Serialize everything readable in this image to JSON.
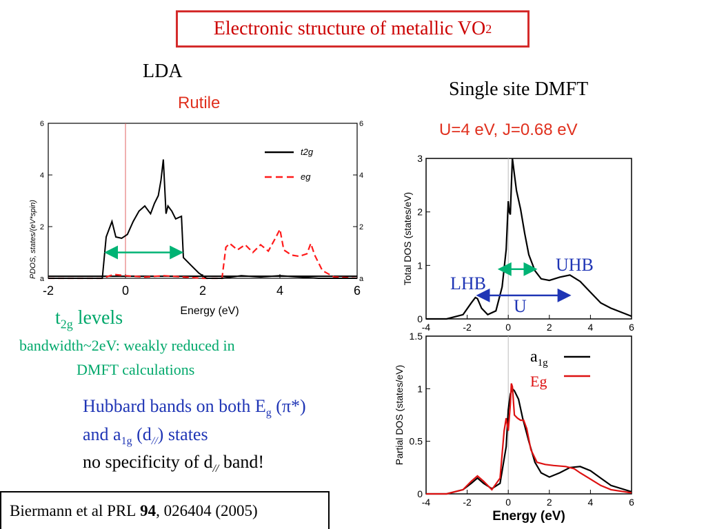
{
  "slide": {
    "title_main": "Electronic structure of metallic VO",
    "title_sub": "2",
    "lda_label": "LDA",
    "rutile_label": "Rutile",
    "dmft_label": "Single site DMFT",
    "params_label": "U=4 eV, J=0.68 eV",
    "t2g_t": "t",
    "t2g_sub": "2g",
    "t2g_rest": " levels",
    "bandwidth_line1": "bandwidth~2eV: weakly reduced in",
    "bandwidth_line2": "DMFT calculations",
    "hubbard_line1": "Hubbard bands on both E",
    "hubbard_line1_sub": "g",
    "hubbard_line1_end": " (π*)",
    "hubbard_line2_start": "and a",
    "hubbard_line2_sub": "1g",
    "hubbard_line2_mid": " (d",
    "hubbard_line2_sub2": "//",
    "hubbard_line2_end": ") states",
    "hubbard_line3_start": "no specificity of d",
    "hubbard_line3_sub": "//",
    "hubbard_line3_end": " band!",
    "ref_text": "Biermann et al PRL ",
    "ref_vol": "94",
    "ref_rest": ", 026404 (2005)",
    "uhb": "UHB",
    "lhb": "LHB",
    "u": "U",
    "legend_a1g_a": "a",
    "legend_a1g_sub": "1g",
    "legend_eg": "Eg"
  },
  "colors": {
    "title_border": "#d42b2b",
    "t2g_line": "#000000",
    "eg_line": "#ff1a1a",
    "green_arrow": "#00b374",
    "blue_arrow": "#1f35b5",
    "a1g_line": "#000000",
    "Eg_line": "#dd1111"
  },
  "chart_data": [
    {
      "type": "line",
      "xlabel": "Energy (eV)",
      "ylabel": "PDOS, states/(eV*spin)",
      "xlim": [
        -2,
        6
      ],
      "ylim": [
        0,
        6
      ],
      "x_ticks": [
        "-2",
        "0",
        "2",
        "4",
        "6"
      ],
      "y_ticks_left": [
        "a",
        "2",
        "4",
        "6"
      ],
      "y_ticks_right": [
        "a",
        "2",
        "4",
        "6"
      ],
      "legend": [
        "t2g",
        "eg"
      ],
      "legend_position": "top-right",
      "series": [
        {
          "name": "t2g",
          "x": [
            -2,
            -0.6,
            -0.5,
            -0.35,
            -0.25,
            -0.1,
            0.05,
            0.2,
            0.35,
            0.5,
            0.65,
            0.75,
            0.85,
            0.92,
            0.98,
            1.05,
            1.1,
            1.2,
            1.3,
            1.45,
            1.5,
            1.7,
            1.9,
            2.1,
            2.5,
            3.0,
            3.5,
            4.0,
            4.5,
            5.0,
            6
          ],
          "values": [
            0,
            0,
            1.6,
            2.2,
            1.6,
            1.55,
            1.7,
            2.2,
            2.6,
            2.8,
            2.5,
            2.9,
            3.2,
            3.8,
            4.6,
            2.5,
            2.8,
            2.6,
            2.3,
            2.4,
            0.8,
            0.5,
            0.2,
            0.0,
            0.0,
            0.1,
            0.05,
            0.1,
            0.05,
            0.0,
            0
          ]
        },
        {
          "name": "eg",
          "x": [
            -2,
            -0.6,
            -0.3,
            0,
            0.5,
            1.0,
            1.5,
            2.0,
            2.5,
            2.6,
            2.7,
            2.9,
            3.1,
            3.3,
            3.5,
            3.7,
            3.9,
            4.0,
            4.1,
            4.3,
            4.5,
            4.7,
            4.8,
            4.9,
            5.1,
            5.4,
            6
          ],
          "values": [
            0,
            0,
            0.15,
            0.1,
            0.05,
            0.1,
            0.05,
            0.0,
            0.0,
            1.2,
            1.35,
            1.1,
            1.3,
            1.0,
            1.3,
            1.05,
            1.6,
            1.9,
            1.1,
            0.9,
            0.85,
            0.95,
            1.35,
            0.9,
            0.3,
            0.05,
            0
          ]
        }
      ]
    },
    {
      "type": "line",
      "xlabel": "",
      "ylabel": "Total DOS (states/eV)",
      "xlim": [
        -4,
        6
      ],
      "ylim": [
        0,
        3
      ],
      "x_ticks": [
        "-4",
        "-2",
        "0",
        "2",
        "4",
        "6"
      ],
      "y_ticks": [
        "0",
        "1",
        "2",
        "3"
      ],
      "series": [
        {
          "name": "total",
          "x": [
            -4,
            -3,
            -2.2,
            -1.8,
            -1.6,
            -1.5,
            -1.3,
            -1.0,
            -0.6,
            -0.3,
            -0.1,
            0.0,
            0.05,
            0.1,
            0.15,
            0.2,
            0.3,
            0.4,
            0.6,
            0.8,
            1.0,
            1.3,
            1.6,
            2.0,
            2.5,
            3.0,
            3.5,
            4.0,
            4.5,
            5.0,
            6.0
          ],
          "values": [
            0.0,
            0.0,
            0.08,
            0.3,
            0.4,
            0.38,
            0.2,
            0.08,
            0.15,
            0.6,
            1.3,
            2.2,
            2.0,
            1.95,
            2.5,
            3.0,
            2.7,
            2.4,
            2.05,
            1.6,
            1.2,
            0.9,
            0.75,
            0.72,
            0.78,
            0.82,
            0.7,
            0.5,
            0.3,
            0.2,
            0.05
          ]
        }
      ],
      "annotations": [
        "UHB",
        "LHB",
        "U"
      ]
    },
    {
      "type": "line",
      "xlabel": "Energy (eV)",
      "ylabel": "Partial DOS (states/eV)",
      "xlim": [
        -4,
        6
      ],
      "ylim": [
        0,
        1.5
      ],
      "x_ticks": [
        "-4",
        "-2",
        "0",
        "2",
        "4",
        "6"
      ],
      "y_ticks": [
        "0",
        "0.5",
        "1",
        "1.5"
      ],
      "legend": [
        "a1g",
        "Eg"
      ],
      "legend_position": "top-right",
      "series": [
        {
          "name": "a1g",
          "x": [
            -4,
            -3,
            -2.2,
            -1.8,
            -1.5,
            -1.2,
            -0.8,
            -0.4,
            -0.1,
            0.0,
            0.1,
            0.2,
            0.3,
            0.5,
            0.7,
            1.0,
            1.3,
            1.6,
            2.0,
            2.5,
            3.0,
            3.5,
            4.0,
            4.5,
            5.0,
            6.0
          ],
          "values": [
            0.0,
            0.0,
            0.04,
            0.1,
            0.15,
            0.1,
            0.05,
            0.1,
            0.45,
            0.8,
            0.95,
            1.0,
            0.98,
            0.9,
            0.72,
            0.5,
            0.3,
            0.2,
            0.16,
            0.2,
            0.25,
            0.26,
            0.22,
            0.15,
            0.08,
            0.02
          ]
        },
        {
          "name": "Eg",
          "x": [
            -4,
            -3,
            -2.2,
            -1.8,
            -1.5,
            -1.2,
            -0.8,
            -0.4,
            -0.2,
            -0.1,
            0.0,
            0.1,
            0.15,
            0.2,
            0.3,
            0.45,
            0.6,
            0.75,
            0.9,
            1.1,
            1.4,
            1.8,
            2.2,
            2.8,
            3.2,
            3.5,
            4.0,
            4.5,
            5.0,
            6.0
          ],
          "values": [
            0.0,
            0.0,
            0.04,
            0.12,
            0.17,
            0.12,
            0.04,
            0.15,
            0.6,
            0.72,
            0.6,
            0.85,
            1.05,
            1.02,
            0.75,
            0.72,
            0.7,
            0.7,
            0.62,
            0.42,
            0.3,
            0.28,
            0.27,
            0.26,
            0.24,
            0.2,
            0.14,
            0.08,
            0.04,
            0.01
          ]
        }
      ],
      "annotations": [
        "a1g",
        "Eg"
      ]
    }
  ]
}
